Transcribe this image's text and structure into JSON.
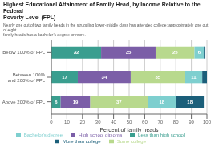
{
  "chart_data": {
    "type": "bar",
    "orientation": "horizontal",
    "stacked": true,
    "title": "Highest Educational Attainment of Family Head, by Income Relative to the Federal\nPoverty Level (FPL)",
    "subtitle": "Nearly one out of two family heads in the struggling lower-middle class has attended college; approximately one out of eight\nfamily heads has a bachelor’s degree or more.",
    "categories": [
      "Below 100% of FPL",
      "Between 100%\nand 200% of FPL",
      "Above 200% of FPL"
    ],
    "series": [
      {
        "name": "Less than high school",
        "color": "#3a9e8f",
        "values": [
          32,
          17,
          6
        ]
      },
      {
        "name": "High school diploma",
        "color": "#7b5ea7",
        "values": [
          35,
          34,
          19
        ]
      },
      {
        "name": "Some college",
        "color": "#b8d98d",
        "values": [
          25,
          35,
          37
        ]
      },
      {
        "name": "Bachelor's degree",
        "color": "#7ecfcf",
        "values": [
          6,
          11,
          18
        ]
      },
      {
        "name": "More than college",
        "color": "#1b5f7a",
        "values": [
          1,
          3,
          18
        ],
        "value_labels": [
          null,
          null,
          "18"
        ]
      }
    ],
    "xlabel": "Percent of family heads",
    "xlim": [
      0,
      100
    ],
    "xticks": [
      0,
      10,
      20,
      30,
      40,
      50,
      60,
      70,
      80,
      90,
      100
    ],
    "grid": true,
    "legend": "bottom",
    "data_labels": true
  }
}
